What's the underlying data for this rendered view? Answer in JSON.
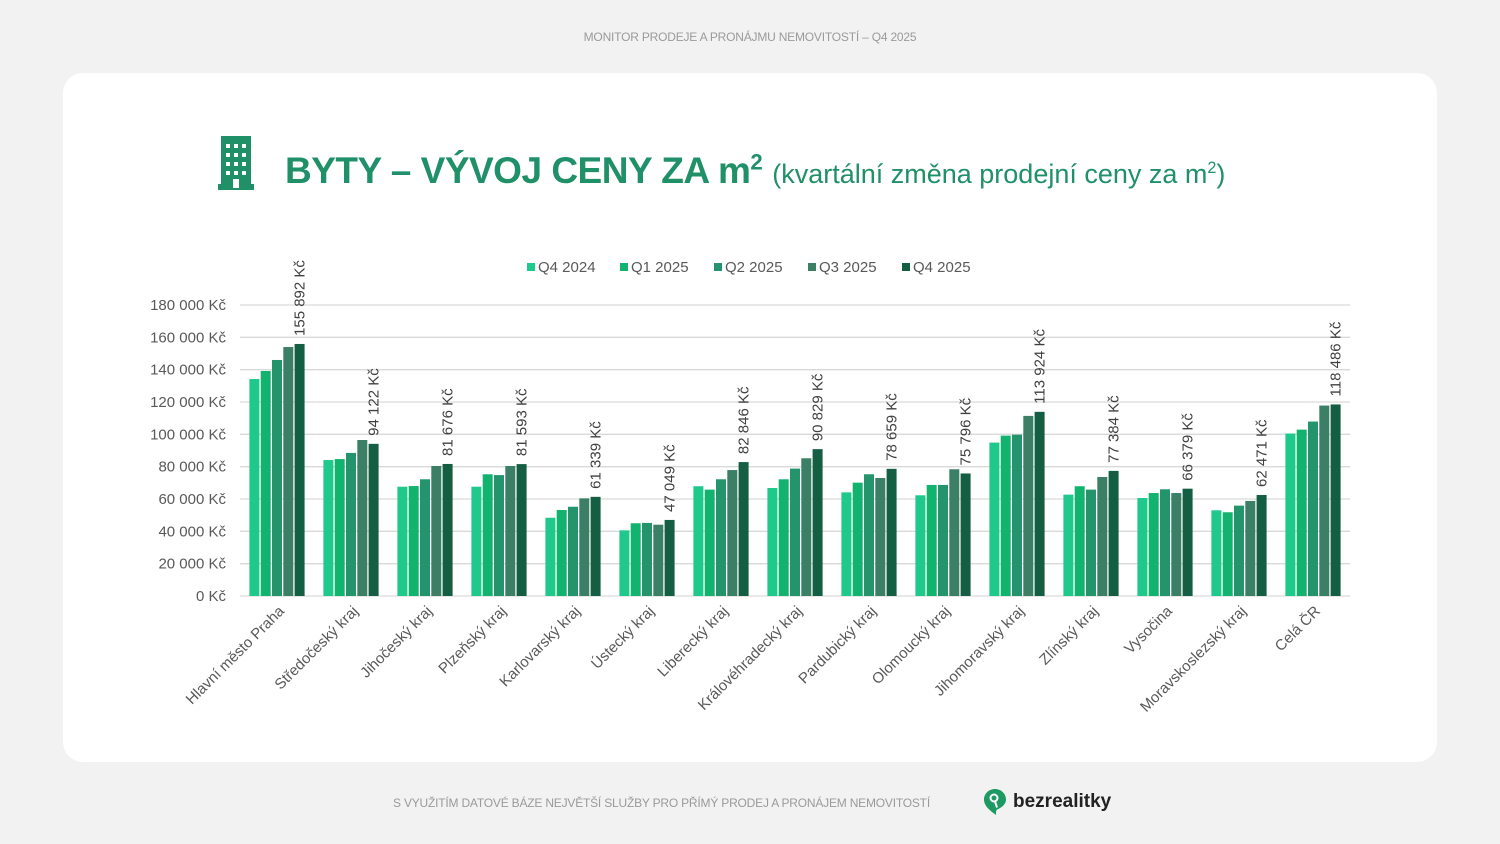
{
  "header": {
    "top_text": "MONITOR PRODEJE A PRONÁJMU NEMOVITOSTÍ – Q4 2025"
  },
  "title": {
    "main": "BYTY – VÝVOJ CENY ZA m",
    "main_sup": "2",
    "sub": "(kvartální změna prodejní ceny za m",
    "sub_sup": "2",
    "sub_end": ")",
    "icon": "building-icon"
  },
  "footer": {
    "text": "S VYUŽITÍM DATOVÉ BÁZE NEJVĚTŠÍ SLUŽBY PRO PŘÍMÝ PRODEJ A PRONÁJEM NEMOVITOSTÍ",
    "brand": "bezrealitky",
    "brand_icon": "map-pin-key-icon"
  },
  "colors": {
    "title": "#1f9068",
    "brand": "#1c9a62"
  },
  "chart_data": {
    "type": "bar",
    "title": "",
    "xlabel": "",
    "ylabel": "",
    "ylim": [
      0,
      180000
    ],
    "yticks": [
      0,
      20000,
      40000,
      60000,
      80000,
      100000,
      120000,
      140000,
      160000,
      180000
    ],
    "ytick_labels": [
      "0 Kč",
      "20 000 Kč",
      "40 000 Kč",
      "60 000 Kč",
      "80 000 Kč",
      "100 000 Kč",
      "120 000 Kč",
      "140 000 Kč",
      "160 000 Kč",
      "180 000 Kč"
    ],
    "grid": true,
    "legend_position": "top",
    "categories": [
      "Hlavní město Praha",
      "Středočeský kraj",
      "Jihočeský kraj",
      "Plzeňský kraj",
      "Karlovarský kraj",
      "Ústecký kraj",
      "Liberecký kraj",
      "Královéhradecký kraj",
      "Pardubický kraj",
      "Olomoucký kraj",
      "Jihomoravský kraj",
      "Zlínský kraj",
      "Vysočina",
      "Moravskoslezský kraj",
      "Celá ČR"
    ],
    "series": [
      {
        "name": "Q4 2024",
        "color": "#1ec98b",
        "values": [
          134200,
          84100,
          67600,
          67600,
          48400,
          40600,
          67900,
          66800,
          64100,
          62300,
          94900,
          62700,
          60600,
          53000,
          100500
        ]
      },
      {
        "name": "Q1 2025",
        "color": "#12b36e",
        "values": [
          139200,
          84700,
          68000,
          75300,
          53200,
          45000,
          65800,
          72200,
          70100,
          68700,
          99200,
          67900,
          63700,
          51800,
          102900
        ]
      },
      {
        "name": "Q2 2025",
        "color": "#23946c",
        "values": [
          146000,
          88500,
          72200,
          74800,
          55200,
          45200,
          72200,
          78800,
          75300,
          68700,
          99800,
          65800,
          66000,
          55900,
          107900
        ]
      },
      {
        "name": "Q3 2025",
        "color": "#3a7f66",
        "values": [
          154000,
          96500,
          80400,
          80400,
          60400,
          44100,
          77900,
          85200,
          73000,
          78400,
          111400,
          73600,
          63700,
          58800,
          117800
        ]
      },
      {
        "name": "Q4 2025",
        "color": "#145f43",
        "values": [
          155892,
          94122,
          81676,
          81593,
          61339,
          47049,
          82846,
          90829,
          78659,
          75796,
          113924,
          77384,
          66379,
          62471,
          118486
        ]
      }
    ],
    "data_labels": [
      "155 892 Kč",
      "94 122 Kč",
      "81 676 Kč",
      "81 593 Kč",
      "61 339 Kč",
      "47 049 Kč",
      "82 846 Kč",
      "90 829 Kč",
      "78 659 Kč",
      "75 796 Kč",
      "113 924 Kč",
      "77 384 Kč",
      "66 379 Kč",
      "62 471 Kč",
      "118 486 Kč"
    ]
  }
}
